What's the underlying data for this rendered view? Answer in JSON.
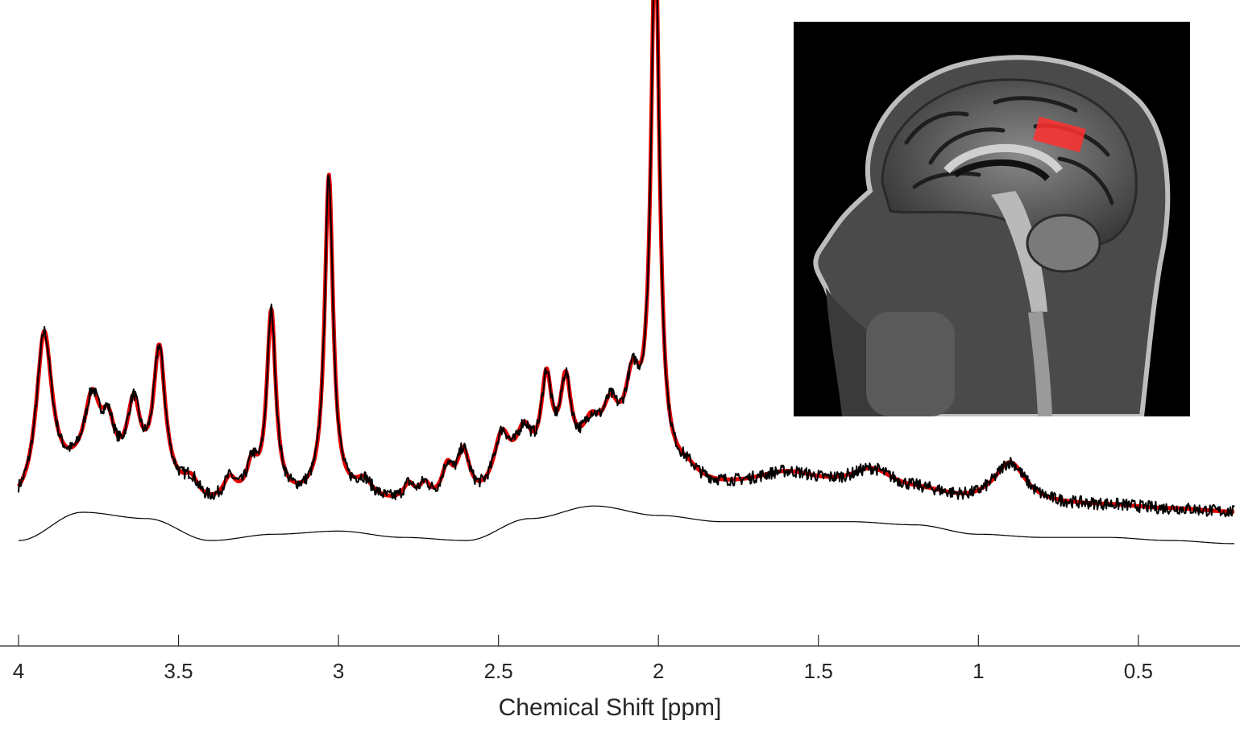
{
  "chart_data": {
    "type": "line",
    "title": "",
    "xlabel": "Chemical Shift [ppm]",
    "ylabel": "",
    "x_reversed": true,
    "xlim": [
      4.0,
      0.2
    ],
    "xticks": [
      4,
      3.5,
      3,
      2.5,
      2,
      1.5,
      1,
      0.5
    ],
    "xtick_labels": [
      "4",
      "3.5",
      "3",
      "2.5",
      "2",
      "1.5",
      "1",
      "0.5"
    ],
    "ylim": [
      -0.1,
      1.8
    ],
    "grid": false,
    "legend": "none",
    "series": [
      {
        "role": "fit",
        "color": "#e00000",
        "peaks": [
          {
            "ppm": 3.92,
            "height": 0.52,
            "width": 0.03
          },
          {
            "ppm": 3.77,
            "height": 0.23,
            "width": 0.03
          },
          {
            "ppm": 3.72,
            "height": 0.14,
            "width": 0.025
          },
          {
            "ppm": 3.64,
            "height": 0.23,
            "width": 0.025
          },
          {
            "ppm": 3.56,
            "height": 0.42,
            "width": 0.022
          },
          {
            "ppm": 3.46,
            "height": 0.06,
            "width": 0.03
          },
          {
            "ppm": 3.34,
            "height": 0.07,
            "width": 0.025
          },
          {
            "ppm": 3.27,
            "height": 0.1,
            "width": 0.02
          },
          {
            "ppm": 3.21,
            "height": 0.59,
            "width": 0.017
          },
          {
            "ppm": 3.03,
            "height": 1.02,
            "width": 0.016
          },
          {
            "ppm": 2.92,
            "height": 0.05,
            "width": 0.03
          },
          {
            "ppm": 2.78,
            "height": 0.05,
            "width": 0.02
          },
          {
            "ppm": 2.73,
            "height": 0.05,
            "width": 0.02
          },
          {
            "ppm": 2.66,
            "height": 0.1,
            "width": 0.02
          },
          {
            "ppm": 2.61,
            "height": 0.16,
            "width": 0.025
          },
          {
            "ppm": 2.49,
            "height": 0.16,
            "width": 0.03
          },
          {
            "ppm": 2.42,
            "height": 0.13,
            "width": 0.03
          },
          {
            "ppm": 2.35,
            "height": 0.28,
            "width": 0.02
          },
          {
            "ppm": 2.29,
            "height": 0.25,
            "width": 0.02
          },
          {
            "ppm": 2.21,
            "height": 0.09,
            "width": 0.03
          },
          {
            "ppm": 2.15,
            "height": 0.14,
            "width": 0.03
          },
          {
            "ppm": 2.08,
            "height": 0.24,
            "width": 0.03
          },
          {
            "ppm": 2.01,
            "height": 1.7,
            "width": 0.016
          },
          {
            "ppm": 1.91,
            "height": 0.03,
            "width": 0.04
          },
          {
            "ppm": 1.6,
            "height": 0.05,
            "width": 0.12
          },
          {
            "ppm": 1.33,
            "height": 0.06,
            "width": 0.08
          },
          {
            "ppm": 0.9,
            "height": 0.13,
            "width": 0.06
          }
        ]
      },
      {
        "role": "measured",
        "color": "#000000",
        "noise_amplitude": 0.018
      },
      {
        "role": "baseline",
        "color": "#000000",
        "x": [
          4.0,
          3.8,
          3.6,
          3.4,
          3.2,
          3.0,
          2.8,
          2.6,
          2.4,
          2.2,
          2.0,
          1.8,
          1.6,
          1.4,
          1.2,
          1.0,
          0.8,
          0.6,
          0.4,
          0.2
        ],
        "values": [
          0.0,
          0.09,
          0.07,
          0.0,
          0.02,
          0.03,
          0.01,
          0.0,
          0.07,
          0.11,
          0.08,
          0.06,
          0.06,
          0.06,
          0.05,
          0.02,
          0.01,
          0.01,
          0.0,
          -0.01
        ]
      }
    ]
  },
  "inset": {
    "icon": "sagittal-mri-brain-with-red-voxel",
    "voxel_color": "#ff3030"
  }
}
